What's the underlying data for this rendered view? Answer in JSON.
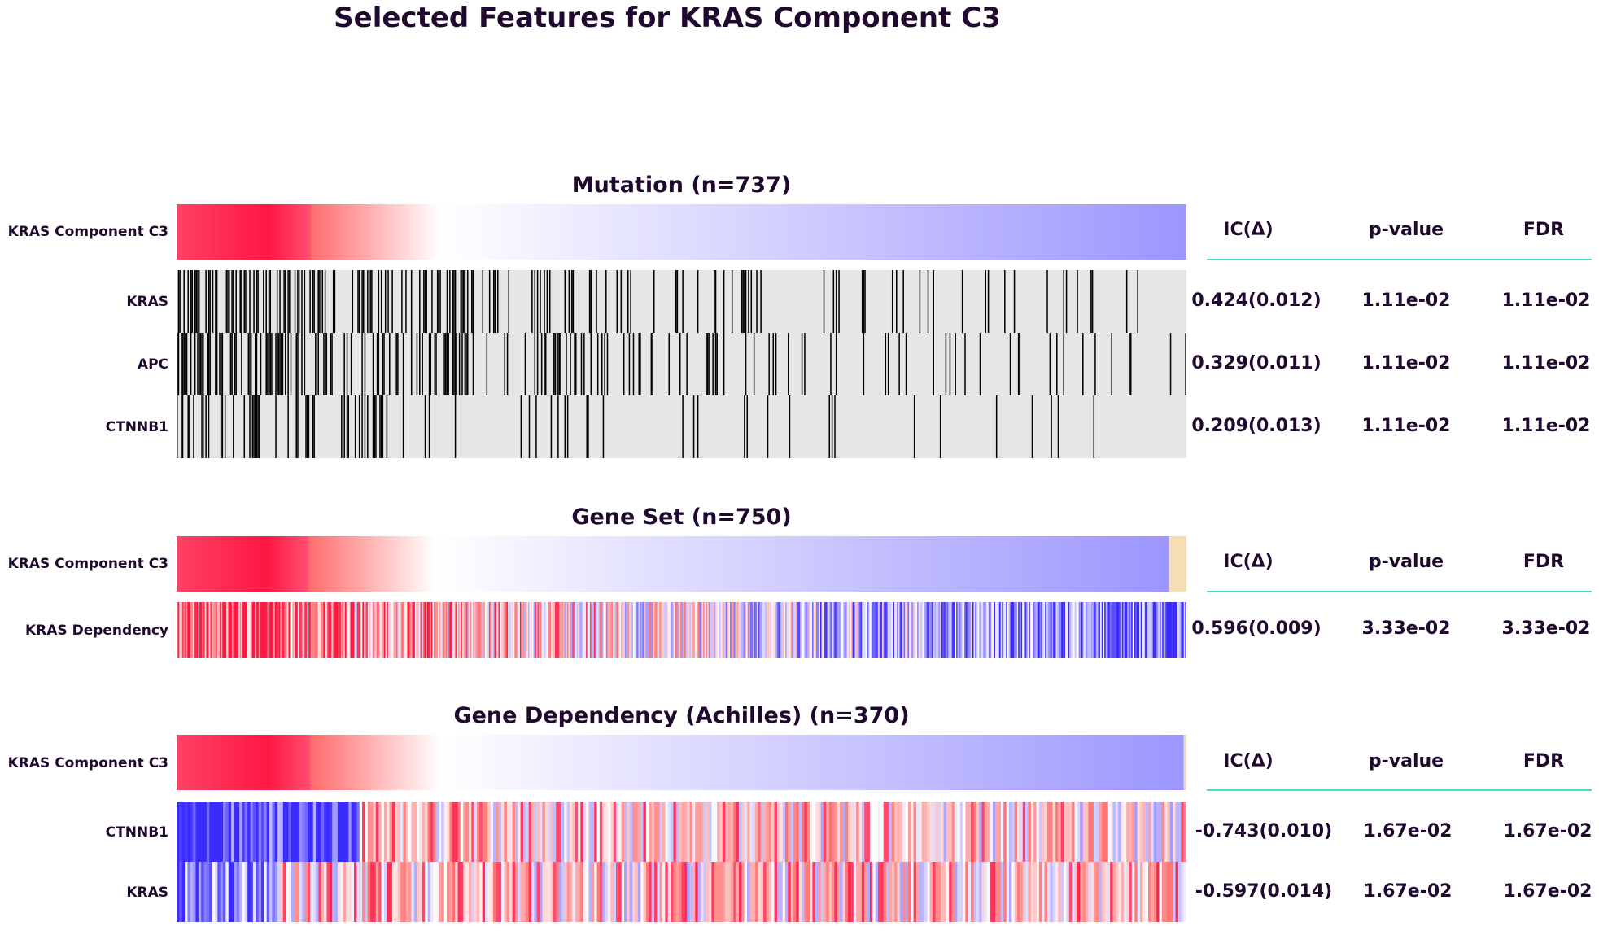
{
  "figure": {
    "title": "Selected Features for KRAS Component C3"
  },
  "table_headers": {
    "ic": "IC(Δ)",
    "pvalue": "p-value",
    "fdr": "FDR"
  },
  "colors": {
    "positive": "#ff1744",
    "negative": "#3a2cff",
    "mutated": "#000000",
    "wildtype": "#e6e6e6",
    "missing": "#f5deb3",
    "divider": "#40e0c0",
    "text": "#20092e"
  },
  "chart_data": [
    {
      "type": "heatmap",
      "title": "Mutation (n=737)",
      "target": {
        "name": "KRAS Component C3"
      },
      "features": [
        {
          "name": "KRAS",
          "ic": "0.424(0.012)",
          "pvalue": "1.11e-02",
          "fdr": "1.11e-02"
        },
        {
          "name": "APC",
          "ic": "0.329(0.011)",
          "pvalue": "1.11e-02",
          "fdr": "1.11e-02"
        },
        {
          "name": "CTNNB1",
          "ic": "0.209(0.013)",
          "pvalue": "1.11e-02",
          "fdr": "1.11e-02"
        }
      ]
    },
    {
      "type": "heatmap",
      "title": "Gene Set (n=750)",
      "target": {
        "name": "KRAS Component C3"
      },
      "features": [
        {
          "name": "KRAS Dependency",
          "ic": "0.596(0.009)",
          "pvalue": "3.33e-02",
          "fdr": "3.33e-02"
        }
      ]
    },
    {
      "type": "heatmap",
      "title": "Gene Dependency (Achilles) (n=370)",
      "target": {
        "name": "KRAS Component C3"
      },
      "features": [
        {
          "name": "CTNNB1",
          "ic": "-0.743(0.010)",
          "pvalue": "1.67e-02",
          "fdr": "1.67e-02"
        },
        {
          "name": "KRAS",
          "ic": "-0.597(0.014)",
          "pvalue": "1.67e-02",
          "fdr": "1.67e-02"
        }
      ]
    }
  ]
}
